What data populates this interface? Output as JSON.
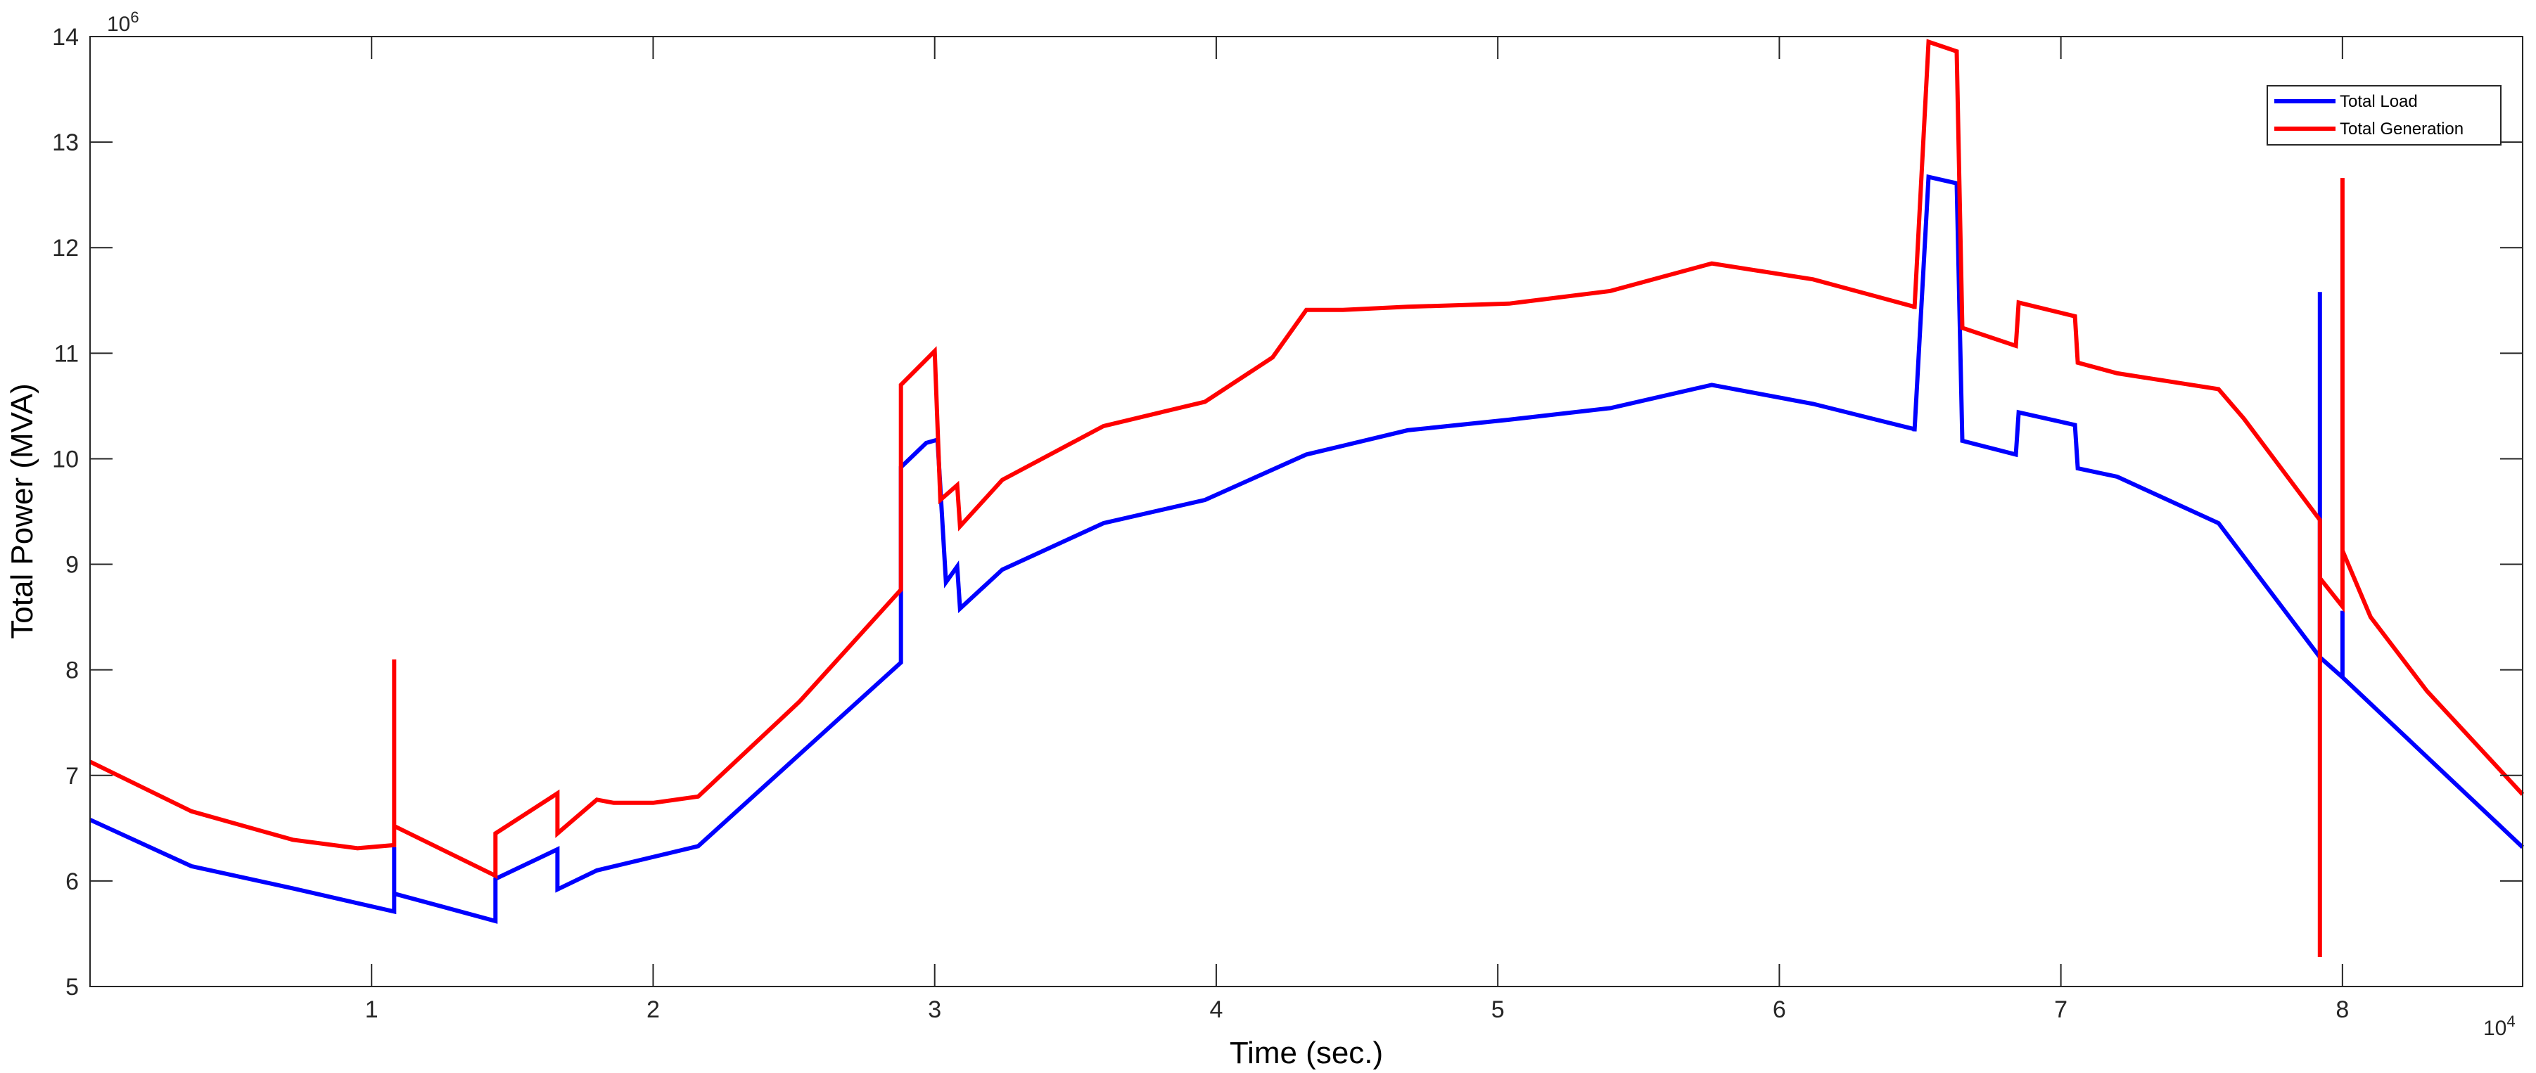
{
  "chart_data": {
    "type": "line",
    "title": "",
    "xlabel": "Time (sec.)",
    "ylabel": "Total Power (MVA)",
    "x_exponent_label": "10",
    "x_exponent_power": "4",
    "y_exponent_label": "10",
    "y_exponent_power": "6",
    "xlim": [
      0,
      8.64
    ],
    "ylim": [
      5,
      14
    ],
    "x_ticks": [
      1,
      2,
      3,
      4,
      5,
      6,
      7,
      8
    ],
    "y_ticks": [
      5,
      6,
      7,
      8,
      9,
      10,
      11,
      12,
      13,
      14
    ],
    "grid": false,
    "legend_position": "top-right",
    "series": [
      {
        "name": "Total Load",
        "color": "#0000ff",
        "points": [
          [
            0,
            6.58
          ],
          [
            0.36,
            6.14
          ],
          [
            0.72,
            5.93
          ],
          [
            1.08,
            5.71
          ],
          [
            1.08,
            6.32
          ],
          [
            1.08,
            5.88
          ],
          [
            1.44,
            5.62
          ],
          [
            1.44,
            6.02
          ],
          [
            1.66,
            6.3
          ],
          [
            1.66,
            5.92
          ],
          [
            1.8,
            6.1
          ],
          [
            2.16,
            6.33
          ],
          [
            2.88,
            8.07
          ],
          [
            2.88,
            9.92
          ],
          [
            2.97,
            10.15
          ],
          [
            3.01,
            10.18
          ],
          [
            3.04,
            8.83
          ],
          [
            3.08,
            8.98
          ],
          [
            3.09,
            8.58
          ],
          [
            3.24,
            8.95
          ],
          [
            3.6,
            9.39
          ],
          [
            3.96,
            9.61
          ],
          [
            4.32,
            10.04
          ],
          [
            4.68,
            10.27
          ],
          [
            5.04,
            10.37
          ],
          [
            5.4,
            10.48
          ],
          [
            5.76,
            10.7
          ],
          [
            6.12,
            10.52
          ],
          [
            6.48,
            10.28
          ],
          [
            6.48,
            10.26
          ],
          [
            6.53,
            12.67
          ],
          [
            6.63,
            12.61
          ],
          [
            6.65,
            10.17
          ],
          [
            6.84,
            10.04
          ],
          [
            6.85,
            10.44
          ],
          [
            7.05,
            10.32
          ],
          [
            7.06,
            9.91
          ],
          [
            7.2,
            9.83
          ],
          [
            7.56,
            9.39
          ],
          [
            7.92,
            8.12
          ],
          [
            7.92,
            11.58
          ],
          [
            7.92,
            8.12
          ],
          [
            8.0,
            7.93
          ],
          [
            8.0,
            8.56
          ],
          [
            8.0,
            7.93
          ],
          [
            8.64,
            6.32
          ]
        ]
      },
      {
        "name": "Total Generation",
        "color": "#ff0000",
        "points": [
          [
            0,
            7.13
          ],
          [
            0.36,
            6.66
          ],
          [
            0.72,
            6.39
          ],
          [
            0.95,
            6.31
          ],
          [
            1.08,
            6.34
          ],
          [
            1.08,
            8.1
          ],
          [
            1.08,
            6.52
          ],
          [
            1.44,
            6.05
          ],
          [
            1.44,
            6.45
          ],
          [
            1.66,
            6.83
          ],
          [
            1.66,
            6.45
          ],
          [
            1.8,
            6.77
          ],
          [
            1.86,
            6.74
          ],
          [
            2.0,
            6.74
          ],
          [
            2.16,
            6.8
          ],
          [
            2.52,
            7.7
          ],
          [
            2.88,
            8.76
          ],
          [
            2.88,
            10.7
          ],
          [
            3.0,
            11.02
          ],
          [
            3.02,
            9.61
          ],
          [
            3.08,
            9.75
          ],
          [
            3.09,
            9.36
          ],
          [
            3.24,
            9.8
          ],
          [
            3.6,
            10.31
          ],
          [
            3.96,
            10.54
          ],
          [
            4.2,
            10.96
          ],
          [
            4.32,
            11.41
          ],
          [
            4.45,
            11.41
          ],
          [
            4.68,
            11.44
          ],
          [
            5.04,
            11.47
          ],
          [
            5.4,
            11.59
          ],
          [
            5.76,
            11.85
          ],
          [
            6.12,
            11.7
          ],
          [
            6.48,
            11.44
          ],
          [
            6.48,
            11.42
          ],
          [
            6.53,
            13.95
          ],
          [
            6.63,
            13.86
          ],
          [
            6.65,
            11.24
          ],
          [
            6.84,
            11.07
          ],
          [
            6.85,
            11.48
          ],
          [
            7.05,
            11.35
          ],
          [
            7.06,
            10.91
          ],
          [
            7.2,
            10.81
          ],
          [
            7.56,
            10.66
          ],
          [
            7.65,
            10.38
          ],
          [
            7.92,
            9.42
          ],
          [
            7.92,
            5.28
          ],
          [
            7.92,
            8.87
          ],
          [
            8.0,
            8.6
          ],
          [
            8.0,
            12.66
          ],
          [
            8.0,
            9.13
          ],
          [
            8.1,
            8.5
          ],
          [
            8.3,
            7.8
          ],
          [
            8.64,
            6.82
          ]
        ]
      }
    ]
  }
}
